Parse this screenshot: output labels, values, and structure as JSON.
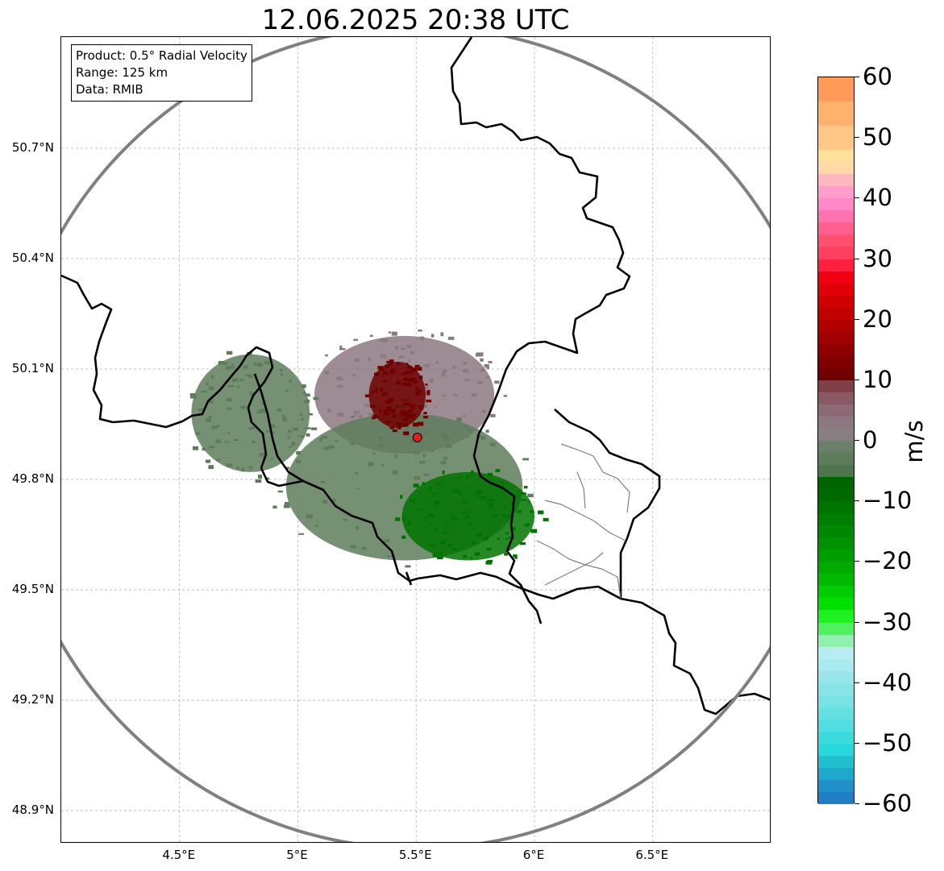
{
  "title": "12.06.2025 20:38 UTC",
  "info_box": {
    "product": "Product: 0.5° Radial Velocity",
    "range": "Range: 125 km",
    "data": "Data: RMIB"
  },
  "axes": {
    "lat_ticks": [
      {
        "value": 50.7,
        "label": "50.7°N"
      },
      {
        "value": 50.4,
        "label": "50.4°N"
      },
      {
        "value": 50.1,
        "label": "50.1°N"
      },
      {
        "value": 49.8,
        "label": "49.8°N"
      },
      {
        "value": 49.5,
        "label": "49.5°N"
      },
      {
        "value": 49.2,
        "label": "49.2°N"
      },
      {
        "value": 48.9,
        "label": "48.9°N"
      }
    ],
    "lon_ticks": [
      {
        "value": 4.5,
        "label": "4.5°E"
      },
      {
        "value": 5.0,
        "label": "5°E"
      },
      {
        "value": 5.5,
        "label": "5.5°E"
      },
      {
        "value": 6.0,
        "label": "6°E"
      },
      {
        "value": 6.5,
        "label": "6.5°E"
      }
    ],
    "lon_range": [
      4.0,
      7.0
    ],
    "lat_range": [
      48.8,
      51.0
    ],
    "grid": true
  },
  "radar": {
    "site_lon": 5.505,
    "site_lat": 49.914,
    "range_km": 125,
    "site_color": "#e0201e",
    "ring_color": "#808080"
  },
  "colorbar": {
    "unit": "m/s",
    "min": -60,
    "max": 60,
    "tick_labels": [
      "60",
      "50",
      "40",
      "30",
      "20",
      "10",
      "0",
      "−10",
      "−20",
      "−30",
      "−40",
      "−50",
      "−60"
    ],
    "colors": [
      {
        "from": 56,
        "to": 60,
        "color": "#ff9a58"
      },
      {
        "from": 52,
        "to": 56,
        "color": "#ffb26e"
      },
      {
        "from": 48,
        "to": 52,
        "color": "#ffc686"
      },
      {
        "from": 46,
        "to": 48,
        "color": "#ffe09a"
      },
      {
        "from": 44,
        "to": 46,
        "color": "#ffd8a8"
      },
      {
        "from": 42,
        "to": 44,
        "color": "#ffb8c0"
      },
      {
        "from": 40,
        "to": 42,
        "color": "#ff9ecc"
      },
      {
        "from": 38,
        "to": 40,
        "color": "#ff88c6"
      },
      {
        "from": 36,
        "to": 38,
        "color": "#ff72b0"
      },
      {
        "from": 34,
        "to": 36,
        "color": "#ff6090"
      },
      {
        "from": 32,
        "to": 34,
        "color": "#ff5070"
      },
      {
        "from": 30,
        "to": 32,
        "color": "#ff4060"
      },
      {
        "from": 28,
        "to": 30,
        "color": "#ff2040"
      },
      {
        "from": 26,
        "to": 28,
        "color": "#f00010"
      },
      {
        "from": 24,
        "to": 26,
        "color": "#e00008"
      },
      {
        "from": 22,
        "to": 24,
        "color": "#d00000"
      },
      {
        "from": 20,
        "to": 22,
        "color": "#c00000"
      },
      {
        "from": 18,
        "to": 20,
        "color": "#b00000"
      },
      {
        "from": 16,
        "to": 18,
        "color": "#a00000"
      },
      {
        "from": 14,
        "to": 16,
        "color": "#900000"
      },
      {
        "from": 12,
        "to": 14,
        "color": "#800000"
      },
      {
        "from": 10,
        "to": 12,
        "color": "#700000"
      },
      {
        "from": 8,
        "to": 10,
        "color": "#804048"
      },
      {
        "from": 6,
        "to": 8,
        "color": "#8a5a64"
      },
      {
        "from": 4,
        "to": 6,
        "color": "#8c6a76"
      },
      {
        "from": 2,
        "to": 4,
        "color": "#8c7880"
      },
      {
        "from": 0,
        "to": 2,
        "color": "#888080"
      },
      {
        "from": -2,
        "to": 0,
        "color": "#6a8068"
      },
      {
        "from": -4,
        "to": -2,
        "color": "#5e7c5c"
      },
      {
        "from": -6,
        "to": -4,
        "color": "#4e7450"
      },
      {
        "from": -8,
        "to": -6,
        "color": "#006400"
      },
      {
        "from": -10,
        "to": -8,
        "color": "#006a00"
      },
      {
        "from": -12,
        "to": -10,
        "color": "#007400"
      },
      {
        "from": -14,
        "to": -12,
        "color": "#007e00"
      },
      {
        "from": -16,
        "to": -14,
        "color": "#008800"
      },
      {
        "from": -18,
        "to": -16,
        "color": "#009200"
      },
      {
        "from": -20,
        "to": -18,
        "color": "#009e00"
      },
      {
        "from": -22,
        "to": -20,
        "color": "#00aa00"
      },
      {
        "from": -24,
        "to": -22,
        "color": "#00b800"
      },
      {
        "from": -26,
        "to": -24,
        "color": "#00cc00"
      },
      {
        "from": -28,
        "to": -26,
        "color": "#00e000"
      },
      {
        "from": -30,
        "to": -28,
        "color": "#20f020"
      },
      {
        "from": -32,
        "to": -30,
        "color": "#50f060"
      },
      {
        "from": -34,
        "to": -32,
        "color": "#90f0b0"
      },
      {
        "from": -36,
        "to": -34,
        "color": "#b8ecf0"
      },
      {
        "from": -38,
        "to": -36,
        "color": "#a8eaee"
      },
      {
        "from": -40,
        "to": -38,
        "color": "#98e6ea"
      },
      {
        "from": -42,
        "to": -40,
        "color": "#88e4e6"
      },
      {
        "from": -44,
        "to": -42,
        "color": "#78e2e4"
      },
      {
        "from": -46,
        "to": -44,
        "color": "#64e0e2"
      },
      {
        "from": -48,
        "to": -46,
        "color": "#50dee0"
      },
      {
        "from": -50,
        "to": -48,
        "color": "#3cdcde"
      },
      {
        "from": -52,
        "to": -50,
        "color": "#28d8dc"
      },
      {
        "from": -54,
        "to": -52,
        "color": "#20c0d0"
      },
      {
        "from": -56,
        "to": -54,
        "color": "#20a8cc"
      },
      {
        "from": -58,
        "to": -56,
        "color": "#2090c8"
      },
      {
        "from": -60,
        "to": -58,
        "color": "#1f7ec4"
      }
    ]
  },
  "echo_regions": [
    {
      "name": "approaching-core",
      "color": "#007400",
      "lon": 5.72,
      "lat": 49.7,
      "rx_deg": 0.28,
      "ry_deg": 0.12
    },
    {
      "name": "receding-core",
      "color": "#700000",
      "lon": 5.42,
      "lat": 50.03,
      "rx_deg": 0.12,
      "ry_deg": 0.09
    },
    {
      "name": "receding-outer",
      "color": "#8c7880",
      "lon": 5.45,
      "lat": 50.03,
      "rx_deg": 0.38,
      "ry_deg": 0.16
    },
    {
      "name": "approaching-outer",
      "color": "#5e7c5c",
      "lon": 5.45,
      "lat": 49.78,
      "rx_deg": 0.5,
      "ry_deg": 0.2
    },
    {
      "name": "west-band",
      "color": "#5e7c5c",
      "lon": 4.8,
      "lat": 49.98,
      "rx_deg": 0.25,
      "ry_deg": 0.16
    }
  ]
}
